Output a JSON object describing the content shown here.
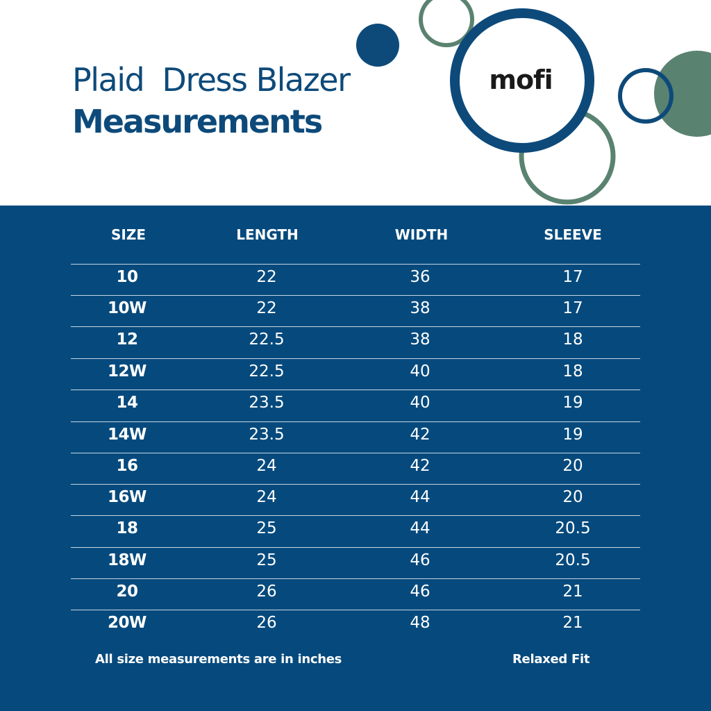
{
  "header": {
    "title_line1": "Plaid  Dress Blazer",
    "title_line2": "Measurements",
    "logo": "mofi"
  },
  "colors": {
    "brand_navy": "#0d4a7a",
    "panel_blue": "#064a7d",
    "sage_green": "#5a8270",
    "white": "#ffffff"
  },
  "table": {
    "columns": [
      "SIZE",
      "LENGTH",
      "WIDTH",
      "SLEEVE"
    ],
    "rows": [
      [
        "10",
        "22",
        "36",
        "17"
      ],
      [
        "10W",
        "22",
        "38",
        "17"
      ],
      [
        "12",
        "22.5",
        "38",
        "18"
      ],
      [
        "12W",
        "22.5",
        "40",
        "18"
      ],
      [
        "14",
        "23.5",
        "40",
        "19"
      ],
      [
        "14W",
        "23.5",
        "42",
        "19"
      ],
      [
        "16",
        "24",
        "42",
        "20"
      ],
      [
        "16W",
        "24",
        "44",
        "20"
      ],
      [
        "18",
        "25",
        "44",
        "20.5"
      ],
      [
        "18W",
        "25",
        "46",
        "20.5"
      ],
      [
        "20",
        "26",
        "46",
        "21"
      ],
      [
        "20W",
        "26",
        "48",
        "21"
      ]
    ]
  },
  "footer": {
    "note_left": "All size measurements are in inches",
    "note_right": "Relaxed Fit"
  }
}
